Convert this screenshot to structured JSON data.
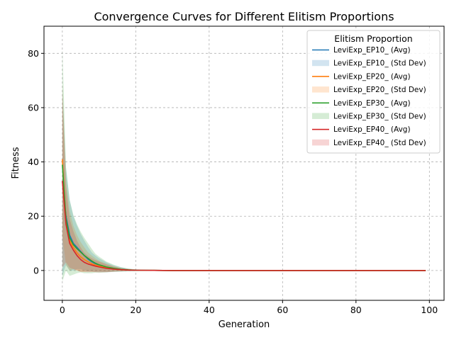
{
  "chart_data": {
    "type": "line",
    "title": "Convergence Curves for Different Elitism Proportions",
    "xlabel": "Generation",
    "ylabel": "Fitness",
    "xlim": [
      -5,
      104
    ],
    "ylim": [
      -11,
      90
    ],
    "xticks": [
      0,
      20,
      40,
      60,
      80,
      100
    ],
    "yticks": [
      0,
      20,
      40,
      60,
      80
    ],
    "grid": true,
    "legend": {
      "title": "Elitism Proportion",
      "placement": "top-right"
    },
    "x": [
      0,
      1,
      2,
      3,
      4,
      5,
      6,
      7,
      8,
      9,
      10,
      12,
      14,
      16,
      18,
      20,
      25,
      30,
      40,
      50,
      60,
      70,
      80,
      90,
      99
    ],
    "series": [
      {
        "name": "LeviExp_EP10_ (Avg)",
        "band_name": "LeviExp_EP10_ (Std Dev)",
        "color": "#1f77b4",
        "values": [
          33,
          20,
          13,
          10,
          8.5,
          7,
          5.5,
          4.2,
          3.2,
          2.5,
          2.0,
          1.2,
          0.7,
          0.4,
          0.2,
          0.1,
          0.05,
          0,
          0,
          0,
          0,
          0,
          0,
          0,
          0
        ],
        "std": [
          35,
          18,
          13,
          10,
          8,
          6.5,
          5.5,
          4.5,
          3.5,
          3.0,
          2.5,
          1.8,
          1.2,
          0.8,
          0.5,
          0.3,
          0.1,
          0.05,
          0,
          0,
          0,
          0,
          0,
          0,
          0
        ]
      },
      {
        "name": "LeviExp_EP20_ (Avg)",
        "band_name": "LeviExp_EP20_ (Std Dev)",
        "color": "#ff7f0e",
        "values": [
          41,
          18,
          11,
          8.5,
          6.5,
          5.0,
          4.0,
          3.2,
          2.5,
          2.0,
          1.6,
          1.0,
          0.6,
          0.3,
          0.2,
          0.1,
          0.05,
          0,
          0,
          0,
          0,
          0,
          0,
          0,
          0
        ],
        "std": [
          28,
          16,
          11,
          8,
          6.5,
          5.5,
          4.5,
          3.5,
          3.0,
          2.5,
          2.0,
          1.5,
          1.0,
          0.6,
          0.4,
          0.2,
          0.1,
          0.05,
          0,
          0,
          0,
          0,
          0,
          0,
          0
        ]
      },
      {
        "name": "LeviExp_EP30_ (Avg)",
        "band_name": "LeviExp_EP30_ (Std Dev)",
        "color": "#2ca02c",
        "values": [
          39,
          19,
          12,
          9.5,
          8,
          6.8,
          5.5,
          4.5,
          3.5,
          2.7,
          2.1,
          1.3,
          0.8,
          0.4,
          0.2,
          0.1,
          0.05,
          0,
          0,
          0,
          0,
          0,
          0,
          0,
          0
        ],
        "std": [
          43,
          19,
          14,
          11,
          9,
          7.5,
          6.5,
          5.5,
          4.5,
          3.5,
          3.0,
          2.0,
          1.3,
          0.8,
          0.5,
          0.3,
          0.1,
          0.05,
          0,
          0,
          0,
          0,
          0,
          0,
          0
        ]
      },
      {
        "name": "LeviExp_EP40_ (Avg)",
        "band_name": "LeviExp_EP40_ (Std Dev)",
        "color": "#d62728",
        "values": [
          33,
          17,
          10,
          7.5,
          5.5,
          4.0,
          3.0,
          2.4,
          2.0,
          1.6,
          1.3,
          0.8,
          0.5,
          0.3,
          0.15,
          0.08,
          0.03,
          0,
          0,
          0,
          0,
          0,
          0,
          0,
          0
        ],
        "std": [
          32,
          14,
          9,
          7,
          5.5,
          4.5,
          3.5,
          3.0,
          2.5,
          2.2,
          2.0,
          1.4,
          0.9,
          0.5,
          0.3,
          0.15,
          0.05,
          0,
          0,
          0,
          0,
          0,
          0,
          0,
          0
        ]
      }
    ]
  }
}
